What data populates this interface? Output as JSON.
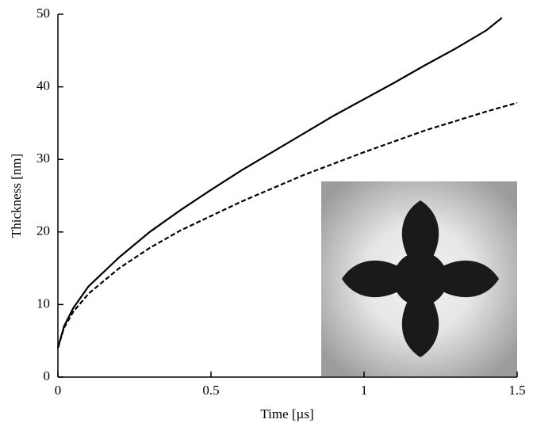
{
  "chart_data": {
    "type": "line",
    "x_label": "Time [µs]",
    "y_label": "Thickness [nm]",
    "x": [
      0,
      0.02,
      0.05,
      0.1,
      0.2,
      0.3,
      0.4,
      0.5,
      0.6,
      0.7,
      0.8,
      0.9,
      1.0,
      1.1,
      1.2,
      1.3,
      1.4,
      1.45,
      1.5
    ],
    "series": [
      {
        "color": "#000000",
        "dash": "solid",
        "values": [
          4,
          7,
          9.5,
          12.5,
          16.5,
          20,
          23,
          25.8,
          28.5,
          31,
          33.5,
          36,
          38.3,
          40.6,
          43,
          45.3,
          47.8,
          49.5,
          null
        ]
      },
      {
        "color": "#000000",
        "dash": "dashed",
        "values": [
          4,
          6.8,
          9,
          11.5,
          15,
          17.8,
          20.2,
          22.2,
          24.2,
          26,
          27.8,
          29.4,
          31,
          32.5,
          34,
          35.3,
          36.6,
          37.2,
          37.8
        ]
      }
    ],
    "xlim": [
      0,
      1.5
    ],
    "ylim": [
      0,
      50
    ],
    "xticks": [
      0,
      0.5,
      1,
      1.5
    ],
    "yticks": [
      0,
      10,
      20,
      30,
      40,
      50
    ]
  }
}
